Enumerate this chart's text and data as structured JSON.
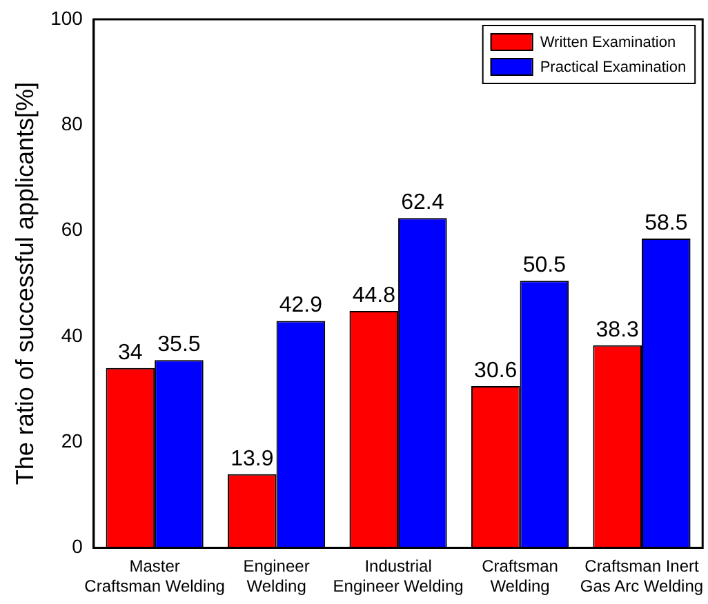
{
  "chart_data": {
    "type": "bar",
    "ylabel": "The ratio of successful applicants[%]",
    "categories": [
      "Master\nCraftsman Welding",
      "Engineer\nWelding",
      "Industrial\nEngineer Welding",
      "Craftsman\nWelding",
      "Craftsman Inert\nGas Arc Welding"
    ],
    "series": [
      {
        "name": "Written Examination",
        "color": "#ff0000",
        "values": [
          34,
          13.9,
          44.8,
          30.6,
          38.3
        ]
      },
      {
        "name": "Practical Examination",
        "color": "#0000ff",
        "values": [
          35.5,
          42.9,
          62.4,
          50.5,
          58.5
        ]
      }
    ],
    "ylim": [
      0,
      100
    ],
    "yticks": [
      0,
      20,
      40,
      60,
      80,
      100
    ],
    "grid": false,
    "legend": "top right",
    "data_labels": true
  }
}
